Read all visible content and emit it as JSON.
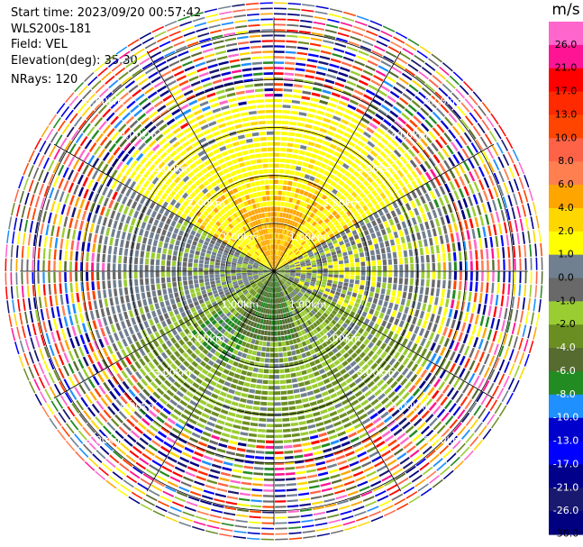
{
  "header": {
    "start_time": "Start time: 2023/09/20 00:57:42",
    "instrument": "WLS200s-181",
    "field": "Field: VEL",
    "elevation": "Elevation(deg): 35.30",
    "nrays": "NRays: 120"
  },
  "chart_data": {
    "type": "heatmap",
    "projection": "polar-ppi",
    "field": "VEL",
    "units": "m/s",
    "n_rays": 120,
    "elevation_deg": 35.3,
    "range_rings_km": [
      1.0,
      2.0,
      3.0,
      4.0,
      5.0
    ],
    "range_ring_labels": [
      "1.00km",
      "2.00km",
      "3.00km",
      "4.00km",
      "5.00km"
    ],
    "max_range_km": 5.7,
    "spokes_deg": [
      0,
      30,
      60,
      90,
      120,
      150,
      180,
      210,
      240,
      270,
      300,
      330
    ],
    "colorbar": {
      "title": "m/s",
      "boundaries": [
        30.0,
        26.0,
        21.0,
        17.0,
        13.0,
        10.0,
        8.0,
        6.0,
        4.0,
        2.0,
        1.0,
        0.0,
        -1.0,
        -2.0,
        -4.0,
        -6.0,
        -8.0,
        -10.0,
        -13.0,
        -17.0,
        -21.0,
        -26.0,
        -30.0
      ],
      "tick_labels": [
        "26.0",
        "21.0",
        "17.0",
        "13.0",
        "10.0",
        "8.0",
        "6.0",
        "4.0",
        "2.0",
        "1.0",
        "0.0",
        "-1.0",
        "-2.0",
        "-4.0",
        "-6.0",
        "-8.0",
        "-10.0",
        "-13.0",
        "-17.0",
        "-21.0",
        "-26.0",
        "-30.0"
      ],
      "colors": [
        "#ff66cc",
        "#ff1493",
        "#ff0000",
        "#ff2a00",
        "#ff4500",
        "#ff6347",
        "#ff7f50",
        "#ffa500",
        "#ffd700",
        "#ffff00",
        "#708090",
        "#696969",
        "#9acd32",
        "#6b8e23",
        "#556b2f",
        "#228b22",
        "#1e90ff",
        "#0000cd",
        "#0000ff",
        "#00008b",
        "#191970",
        "#000080"
      ]
    },
    "pattern_summary": {
      "near_north_sector": "orange 4–8 m/s",
      "north_sector": "yellow 2–4 m/s",
      "east_west_band": "gray ±1 m/s",
      "south_sector": "green -1 to -6 m/s",
      "far_range": "noisy, all colors"
    }
  }
}
